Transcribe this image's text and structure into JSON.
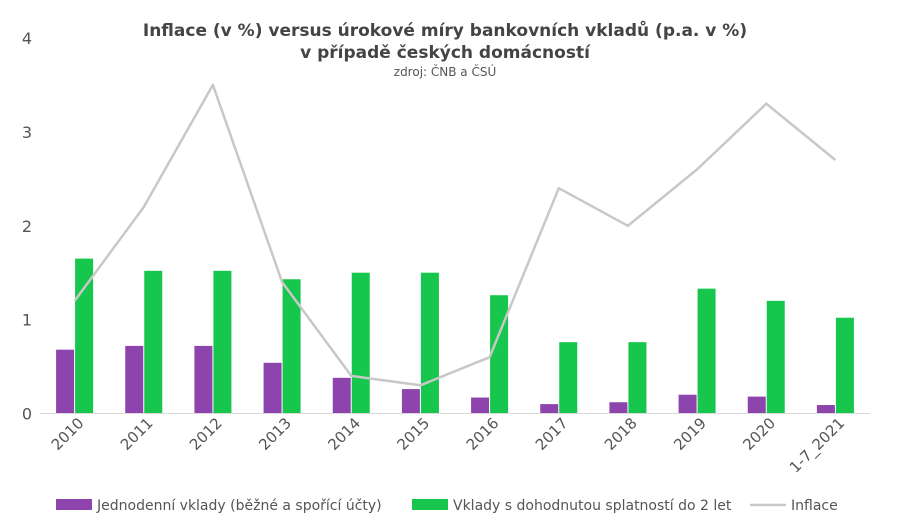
{
  "chart_data": {
    "type": "bar",
    "title_line1": "Inflace (v %) versus úrokové míry bankovních vkladů (p.a. v %)",
    "title_line2": "v případě českých domácností",
    "subtitle": "zdroj: ČNB a ČSÚ",
    "categories": [
      "2010",
      "2011",
      "2012",
      "2013",
      "2014",
      "2015",
      "2016",
      "2017",
      "2018",
      "2019",
      "2020",
      "1-7_2021"
    ],
    "ylim": [
      0,
      4
    ],
    "yticks": [
      "0",
      "1",
      "2",
      "3",
      "4"
    ],
    "grid": false,
    "legend_position": "bottom",
    "series": [
      {
        "name": "Jednodenní vklady (běžné a spořící účty)",
        "type": "bar",
        "color": "#8e44ad",
        "values": [
          0.68,
          0.72,
          0.72,
          0.54,
          0.38,
          0.26,
          0.17,
          0.1,
          0.12,
          0.2,
          0.18,
          0.09
        ]
      },
      {
        "name": "Vklady s dohodnutou splatností do 2 let",
        "type": "bar",
        "color": "#17c64d",
        "values": [
          1.65,
          1.52,
          1.52,
          1.43,
          1.5,
          1.5,
          1.26,
          0.76,
          0.76,
          1.33,
          1.2,
          1.02
        ]
      },
      {
        "name": "Inflace",
        "type": "line",
        "color": "#c8c8c8",
        "values": [
          1.2,
          2.2,
          3.5,
          1.4,
          0.4,
          0.3,
          0.6,
          2.4,
          2.0,
          2.6,
          3.3,
          2.7
        ]
      }
    ]
  }
}
